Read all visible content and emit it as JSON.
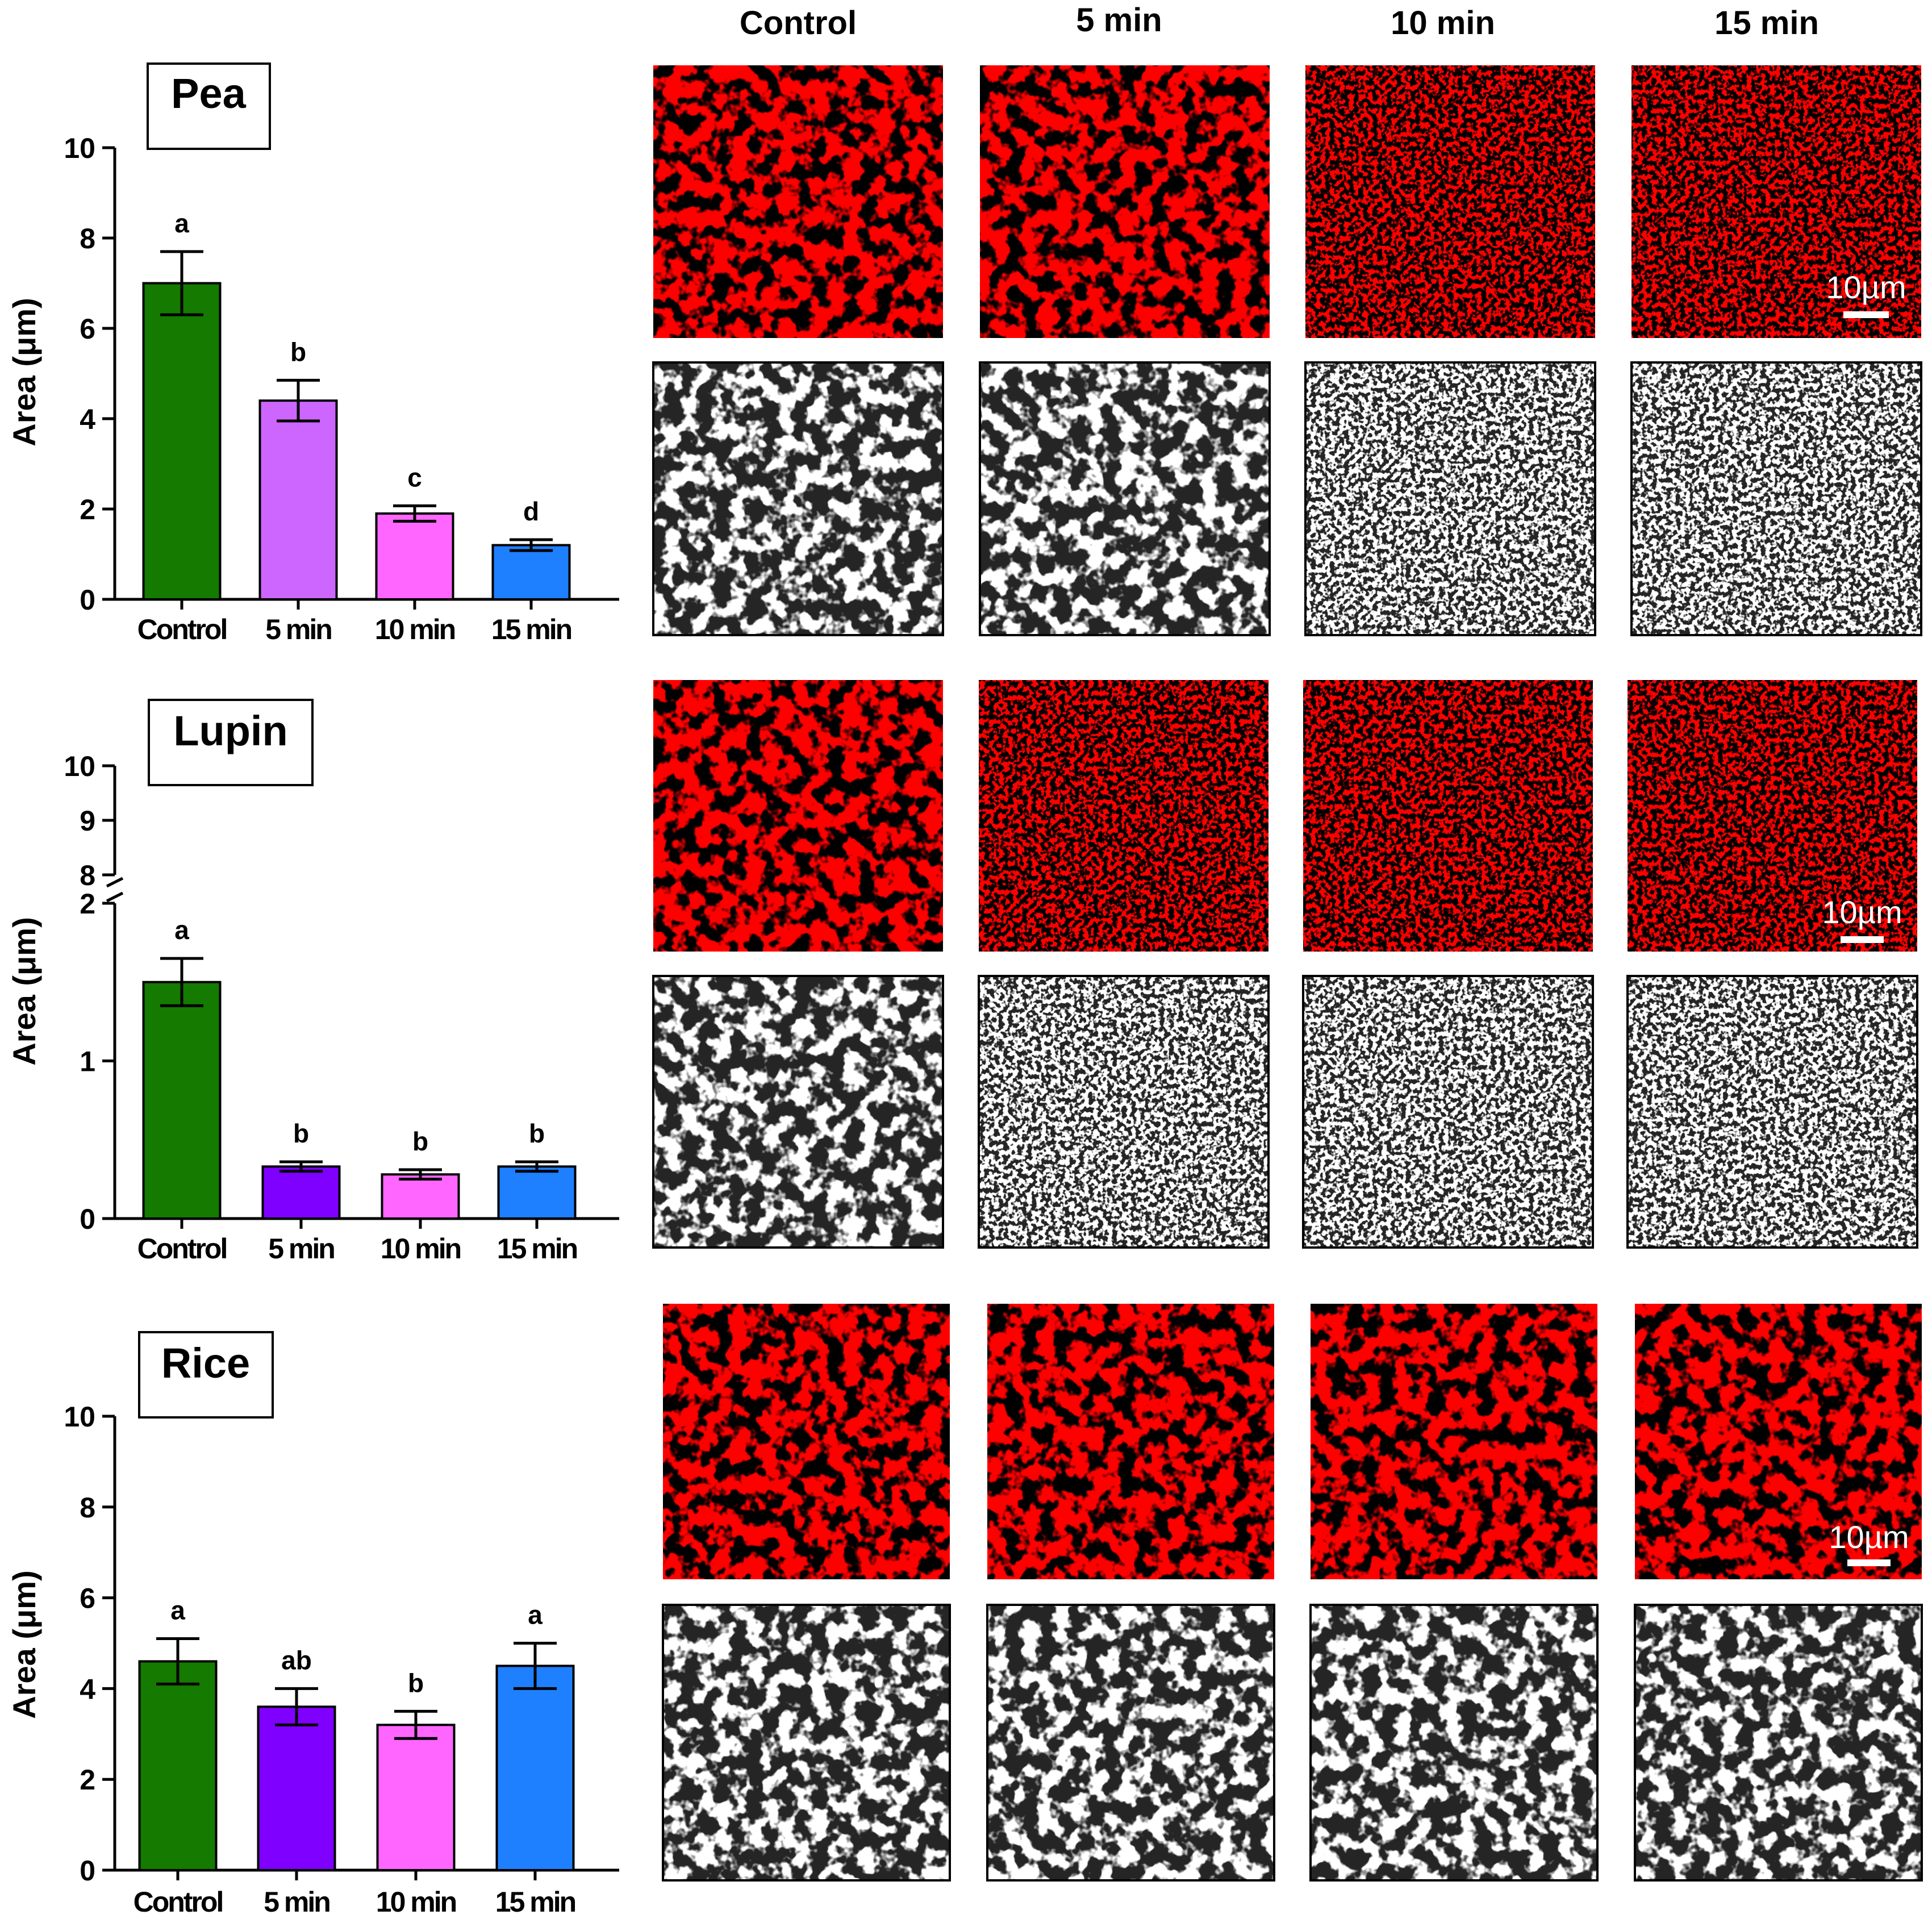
{
  "column_headers": [
    "Control",
    "5 min",
    "10 min",
    "15 min"
  ],
  "scale_bar_label": "10µm",
  "chart_data": [
    {
      "type": "bar",
      "title": "Pea",
      "ylabel": "Area (μm)",
      "categories": [
        "Control",
        "5 min",
        "10 min",
        "15 min"
      ],
      "values": [
        7.0,
        4.4,
        1.9,
        1.2
      ],
      "errors": [
        0.7,
        0.45,
        0.17,
        0.12
      ],
      "letters": [
        "a",
        "b",
        "c",
        "d"
      ],
      "ylim": [
        0,
        10
      ],
      "yticks": [
        "0",
        "2",
        "4",
        "6",
        "8",
        "10"
      ],
      "colors": [
        "#147a00",
        "#cc66ff",
        "#ff66ff",
        "#1e7fff"
      ]
    },
    {
      "type": "bar",
      "title": "Lupin",
      "ylabel": "Area (μm)",
      "categories": [
        "Control",
        "5 min",
        "10 min",
        "15 min"
      ],
      "values": [
        1.5,
        0.33,
        0.28,
        0.33
      ],
      "errors": [
        0.15,
        0.03,
        0.03,
        0.03
      ],
      "letters": [
        "a",
        "b",
        "b",
        "b"
      ],
      "ylim_lower": [
        0,
        2
      ],
      "ylim_upper": [
        8,
        10
      ],
      "yticks_lower": [
        "0",
        "1",
        "2"
      ],
      "yticks_upper": [
        "8",
        "9",
        "10"
      ],
      "colors": [
        "#147a00",
        "#7f00ff",
        "#ff66ff",
        "#1e7fff"
      ]
    },
    {
      "type": "bar",
      "title": "Rice",
      "ylabel": "Area (μm)",
      "categories": [
        "Control",
        "5 min",
        "10 min",
        "15 min"
      ],
      "values": [
        4.6,
        3.6,
        3.2,
        4.5
      ],
      "errors": [
        0.5,
        0.4,
        0.3,
        0.5
      ],
      "letters": [
        "a",
        "ab",
        "b",
        "a"
      ],
      "ylim": [
        0,
        10
      ],
      "yticks": [
        "0",
        "2",
        "4",
        "6",
        "8",
        "10"
      ],
      "colors": [
        "#147a00",
        "#7f00ff",
        "#ff66ff",
        "#1e7fff"
      ]
    }
  ]
}
